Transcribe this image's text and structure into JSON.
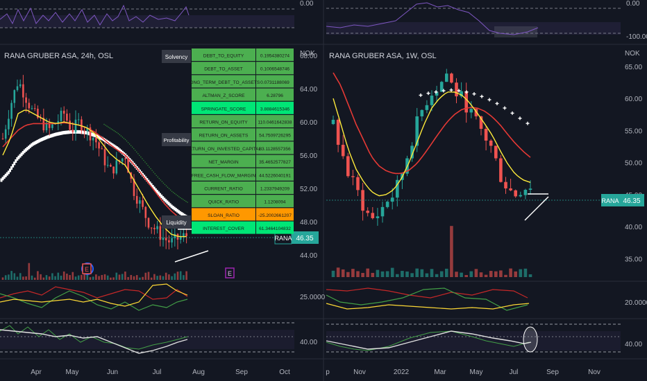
{
  "colors": {
    "background": "#131722",
    "up": "#26a69a",
    "down": "#ef5350",
    "axis_text": "#b2b5be",
    "yellow": "#ffeb3b",
    "red": "#e53935",
    "white": "#ffffff",
    "purple": "#7e57c2",
    "table_green": "#4caf50",
    "table_orange": "#ff9800",
    "tag_teal": "#26a69a"
  },
  "left_panel": {
    "title": "RANA GRUBER ASA, 24h, OSL",
    "currency": "NOK",
    "price_tag_symbol": "RANA",
    "price_tag_value": "46.35",
    "x_ticks": [
      "Apr",
      "May",
      "Jun",
      "Jul",
      "Aug",
      "Sep",
      "Oct"
    ],
    "top_osc_label": "0.00",
    "macd_label": "25.0000",
    "rsi_label": "40.00",
    "earnings_markers": [
      "E",
      "E"
    ],
    "table_sections": [
      "Solvency",
      "Profitability",
      "Liquidity"
    ],
    "metrics": [
      {
        "name": "DEBT_TO_EQUITY",
        "value": "0.1954380274",
        "color": "#4caf50"
      },
      {
        "name": "DEBT_TO_ASSET",
        "value": "0.1006548746",
        "color": "#4caf50"
      },
      {
        "name": "LONG_TERM_DEBT_TO_ASSETS",
        "value": "0.0731188069",
        "color": "#4caf50"
      },
      {
        "name": "ALTMAN_Z_SCORE",
        "value": "6.28796",
        "color": "#4caf50"
      },
      {
        "name": "SPRINGATE_SCORE",
        "value": "3.8884615346",
        "color": "#00e676"
      },
      {
        "name": "RETURN_ON_EQUITY",
        "value": "110.0461642838",
        "color": "#4caf50"
      },
      {
        "name": "RETURN_ON_ASSETS",
        "value": "54.7509726295",
        "color": "#4caf50"
      },
      {
        "name": "RETURN_ON_INVESTED_CAPITAL",
        "value": "83.1128557356",
        "color": "#4caf50"
      },
      {
        "name": "NET_MARGIN",
        "value": "35.4652577827",
        "color": "#4caf50"
      },
      {
        "name": "FREE_CASH_FLOW_MARGIN",
        "value": "44.5226040191",
        "color": "#4caf50"
      },
      {
        "name": "CURRENT_RATIO",
        "value": "1.2337949209",
        "color": "#4caf50"
      },
      {
        "name": "QUICK_RATIO",
        "value": "1.1208094",
        "color": "#4caf50"
      },
      {
        "name": "SLOAN_RATIO",
        "value": "-25.2002661207",
        "color": "#ff9800"
      },
      {
        "name": "INTEREST_COVER",
        "value": "61.3464104832",
        "color": "#00e676"
      }
    ]
  },
  "right_panel": {
    "title": "RANA GRUBER ASA, 1W, OSL",
    "currency": "NOK",
    "price_tag_symbol": "RANA",
    "price_tag_value": "46.35",
    "x_ticks": [
      "p",
      "Nov",
      "2022",
      "Mar",
      "May",
      "Jul",
      "Sep",
      "Nov"
    ],
    "top_osc_labels": [
      "0.00",
      "-100.00"
    ],
    "macd_label": "20.0000",
    "rsi_label": "40.00"
  },
  "chart_data": [
    {
      "type": "candlestick",
      "title": "RANA GRUBER ASA, 24h, OSL",
      "timeframe": "24h",
      "ylabel": "NOK",
      "y_ticks": [
        68.0,
        64.0,
        60.0,
        56.0,
        52.0,
        48.0,
        44.0
      ],
      "ylim": [
        42,
        69
      ],
      "last_price": 46.35,
      "x_ticks": [
        "Apr",
        "May",
        "Jun",
        "Jul",
        "Aug",
        "Sep",
        "Oct"
      ],
      "close_path": [
        58,
        62,
        65,
        63,
        61,
        60,
        59,
        60,
        61,
        59,
        60,
        59,
        58,
        56,
        54,
        55,
        56,
        52,
        50,
        48,
        47,
        46,
        45.5,
        46,
        46.35
      ],
      "ma_fast": [
        56,
        58,
        61,
        61.5,
        61,
        60.5,
        60,
        59.8,
        60,
        59.8,
        59.6,
        59.3,
        58.6,
        57.4,
        56.2,
        55.4,
        54.8,
        53.2,
        51.6,
        50,
        48.6,
        47.4,
        46.5,
        46.2,
        46.2
      ],
      "ma_slow": [
        57,
        58,
        59,
        59.6,
        59.8,
        59.8,
        59.8,
        59.8,
        59.9,
        59.8,
        59.6,
        59.3,
        58.8,
        58.1,
        57.3,
        56.6,
        56,
        55,
        53.9,
        52.7,
        51.5,
        50.3,
        49.3,
        48.5,
        47.8
      ],
      "psar_band": [
        53,
        54,
        55.5,
        56.5,
        57.3,
        57.8,
        58.2,
        58.5,
        58.7,
        58.8,
        58.8,
        58.7,
        58.4,
        58,
        57.4,
        56.8,
        56,
        55,
        53.9,
        52.8,
        51.7,
        50.7,
        49.8,
        49.1,
        48.5
      ]
    },
    {
      "type": "candlestick",
      "title": "RANA GRUBER ASA, 1W, OSL",
      "timeframe": "1W",
      "ylabel": "NOK",
      "y_ticks": [
        65.0,
        60.0,
        55.0,
        50.0,
        45.0,
        40.0,
        35.0
      ],
      "ylim": [
        33,
        68
      ],
      "last_price": 46.35,
      "x_ticks": [
        "p",
        "Nov",
        "2022",
        "Mar",
        "May",
        "Jul",
        "Sep",
        "Nov"
      ],
      "close_path": [
        56,
        52,
        48,
        46,
        43,
        41,
        42,
        44,
        45,
        48,
        52,
        56,
        59,
        61,
        62,
        64,
        61,
        60,
        58,
        56,
        54,
        52,
        48,
        46,
        45,
        46,
        46.35
      ],
      "ma_fast": [
        60,
        56,
        52,
        49,
        47,
        45.5,
        44.8,
        45,
        45.8,
        47.5,
        50,
        53,
        56,
        58.5,
        60,
        61,
        61,
        60.5,
        59.3,
        57.7,
        56,
        54.2,
        51.9,
        49.8,
        48.2,
        47.3,
        46.9
      ],
      "ma_slow": [
        64,
        62,
        59,
        56,
        53.5,
        51,
        49.5,
        48.7,
        48.3,
        48.3,
        48.8,
        49.8,
        51.3,
        53,
        54.7,
        56.3,
        57.5,
        58.3,
        58.6,
        58.5,
        58,
        57.1,
        55.9,
        54.4,
        53,
        51.8,
        50.8
      ],
      "psar_points": [
        60.5,
        60.8,
        61,
        61.2,
        61.3,
        61.2,
        61,
        60.7,
        60.3,
        59.8,
        59.2,
        58.5,
        57.7,
        56.9,
        56.1
      ]
    }
  ]
}
